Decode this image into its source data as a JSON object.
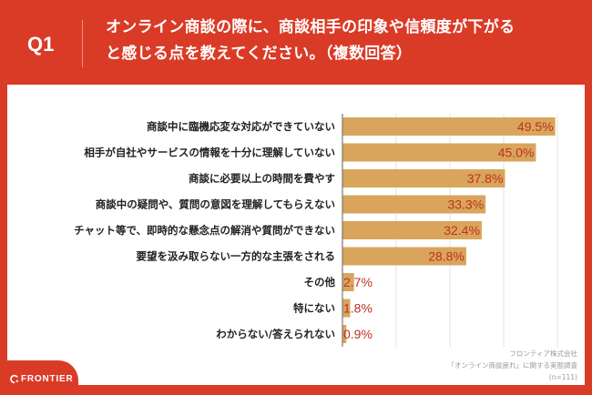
{
  "header": {
    "question_number": "Q1",
    "title_line1": "オンライン商談の際に、商談相手の印象や信頼度が下がる",
    "title_line2": "と感じる点を教えてください。（複数回答）"
  },
  "footer": {
    "logo_text": "FRONTIER",
    "source_company": "フロンティア株式会社",
    "source_survey": "「オンライン商談疲れ」に関する実態調査",
    "sample_size": "(n=111)"
  },
  "colors": {
    "background": "#DA3B27",
    "bar": "#D9A55C",
    "value_label": "#C0301F",
    "gridline": "#E2E2E2"
  },
  "chart_data": {
    "type": "bar",
    "orientation": "horizontal",
    "categories": [
      "商談中に臨機応変な対応ができていない",
      "相手が自社やサービスの情報を十分に理解していない",
      "商談に必要以上の時間を費やす",
      "商談中の疑問や、質問の意図を理解してもらえない",
      "チャット等で、即時的な懸念点の解消や質問ができない",
      "要望を汲み取らない一方的な主張をされる",
      "その他",
      "特にない",
      "わからない/答えられない"
    ],
    "values": [
      49.5,
      45.0,
      37.8,
      33.3,
      32.4,
      28.8,
      2.7,
      1.8,
      0.9
    ],
    "value_labels": [
      "49.5%",
      "45.0%",
      "37.8%",
      "33.3%",
      "32.4%",
      "28.8%",
      "2.7%",
      "1.8%",
      "0.9%"
    ],
    "unit": "%",
    "xlim": [
      0,
      50
    ],
    "gridlines": [
      12.5,
      25,
      37.5,
      50
    ],
    "grid": true,
    "legend": "none"
  }
}
